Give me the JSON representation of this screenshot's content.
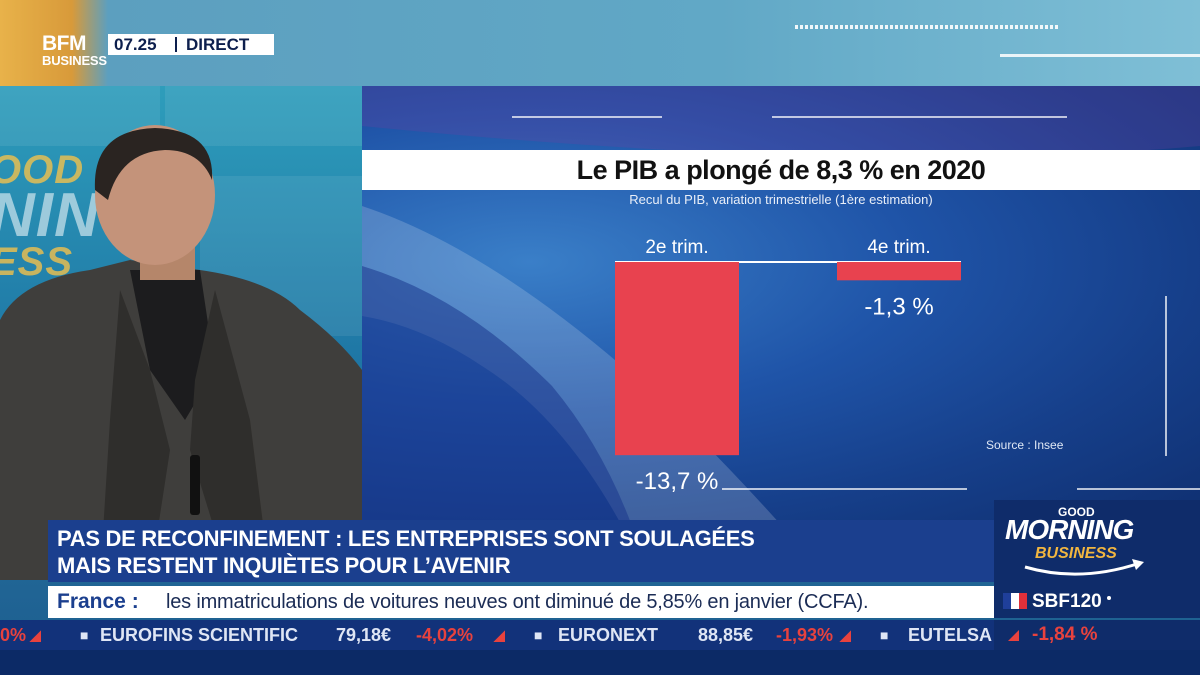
{
  "channel": {
    "logo_line1": "BFM",
    "logo_line2": "BUSINESS",
    "time": "07.25",
    "live_label": "DIRECT"
  },
  "chart_panel": {
    "title": "Le PIB a plongé de 8,3 % en 2020",
    "subtitle": "Recul du PIB, variation trimestrielle (1ère estimation)",
    "source": "Source : Insee"
  },
  "chart_data": {
    "type": "bar",
    "title": "Le PIB a plongé de 8,3 % en 2020",
    "subtitle": "Recul du PIB, variation trimestrielle (1ère estimation)",
    "categories": [
      "2e trim.",
      "4e trim."
    ],
    "values": [
      -13.7,
      -1.3
    ],
    "value_labels": [
      "-13,7 %",
      "-1,3 %"
    ],
    "unit": "%",
    "bar_color": "#e8424f",
    "source": "Source : Insee"
  },
  "lower_third": {
    "headline_line1": "PAS DE RECONFINEMENT : LES ENTREPRISES SONT SOULAGÉES",
    "headline_line2": "MAIS RESTENT INQUIÈTES POUR L’AVENIR",
    "info_label": "France :",
    "info_text": "les immatriculations de voitures neuves ont diminué de 5,85% en janvier (CCFA)."
  },
  "show_brand": {
    "line1": "GOOD",
    "line2": "MORNING",
    "line3": "BUSINESS"
  },
  "wall_logo": {
    "line1": "OOD",
    "line2": "NINC",
    "line3": "ESS"
  },
  "market_index": {
    "name": "SBF120",
    "change": "-1,84 %",
    "flag_colors": [
      "#1f3f9a",
      "#ffffff",
      "#e0303a"
    ]
  },
  "ticker": {
    "lead_change": "0%",
    "items": [
      {
        "name": "EUROFINS SCIENTIFIC",
        "value": "79,18€",
        "change": "-4,02%"
      },
      {
        "name": "EURONEXT",
        "value": "88,85€",
        "change": "-1,93%"
      },
      {
        "name": "EUTELSA",
        "value": "",
        "change": ""
      }
    ]
  },
  "colors": {
    "accent_blue": "#1b3f8e",
    "negative_red": "#e8423e",
    "brand_gold": "#f2b640"
  }
}
